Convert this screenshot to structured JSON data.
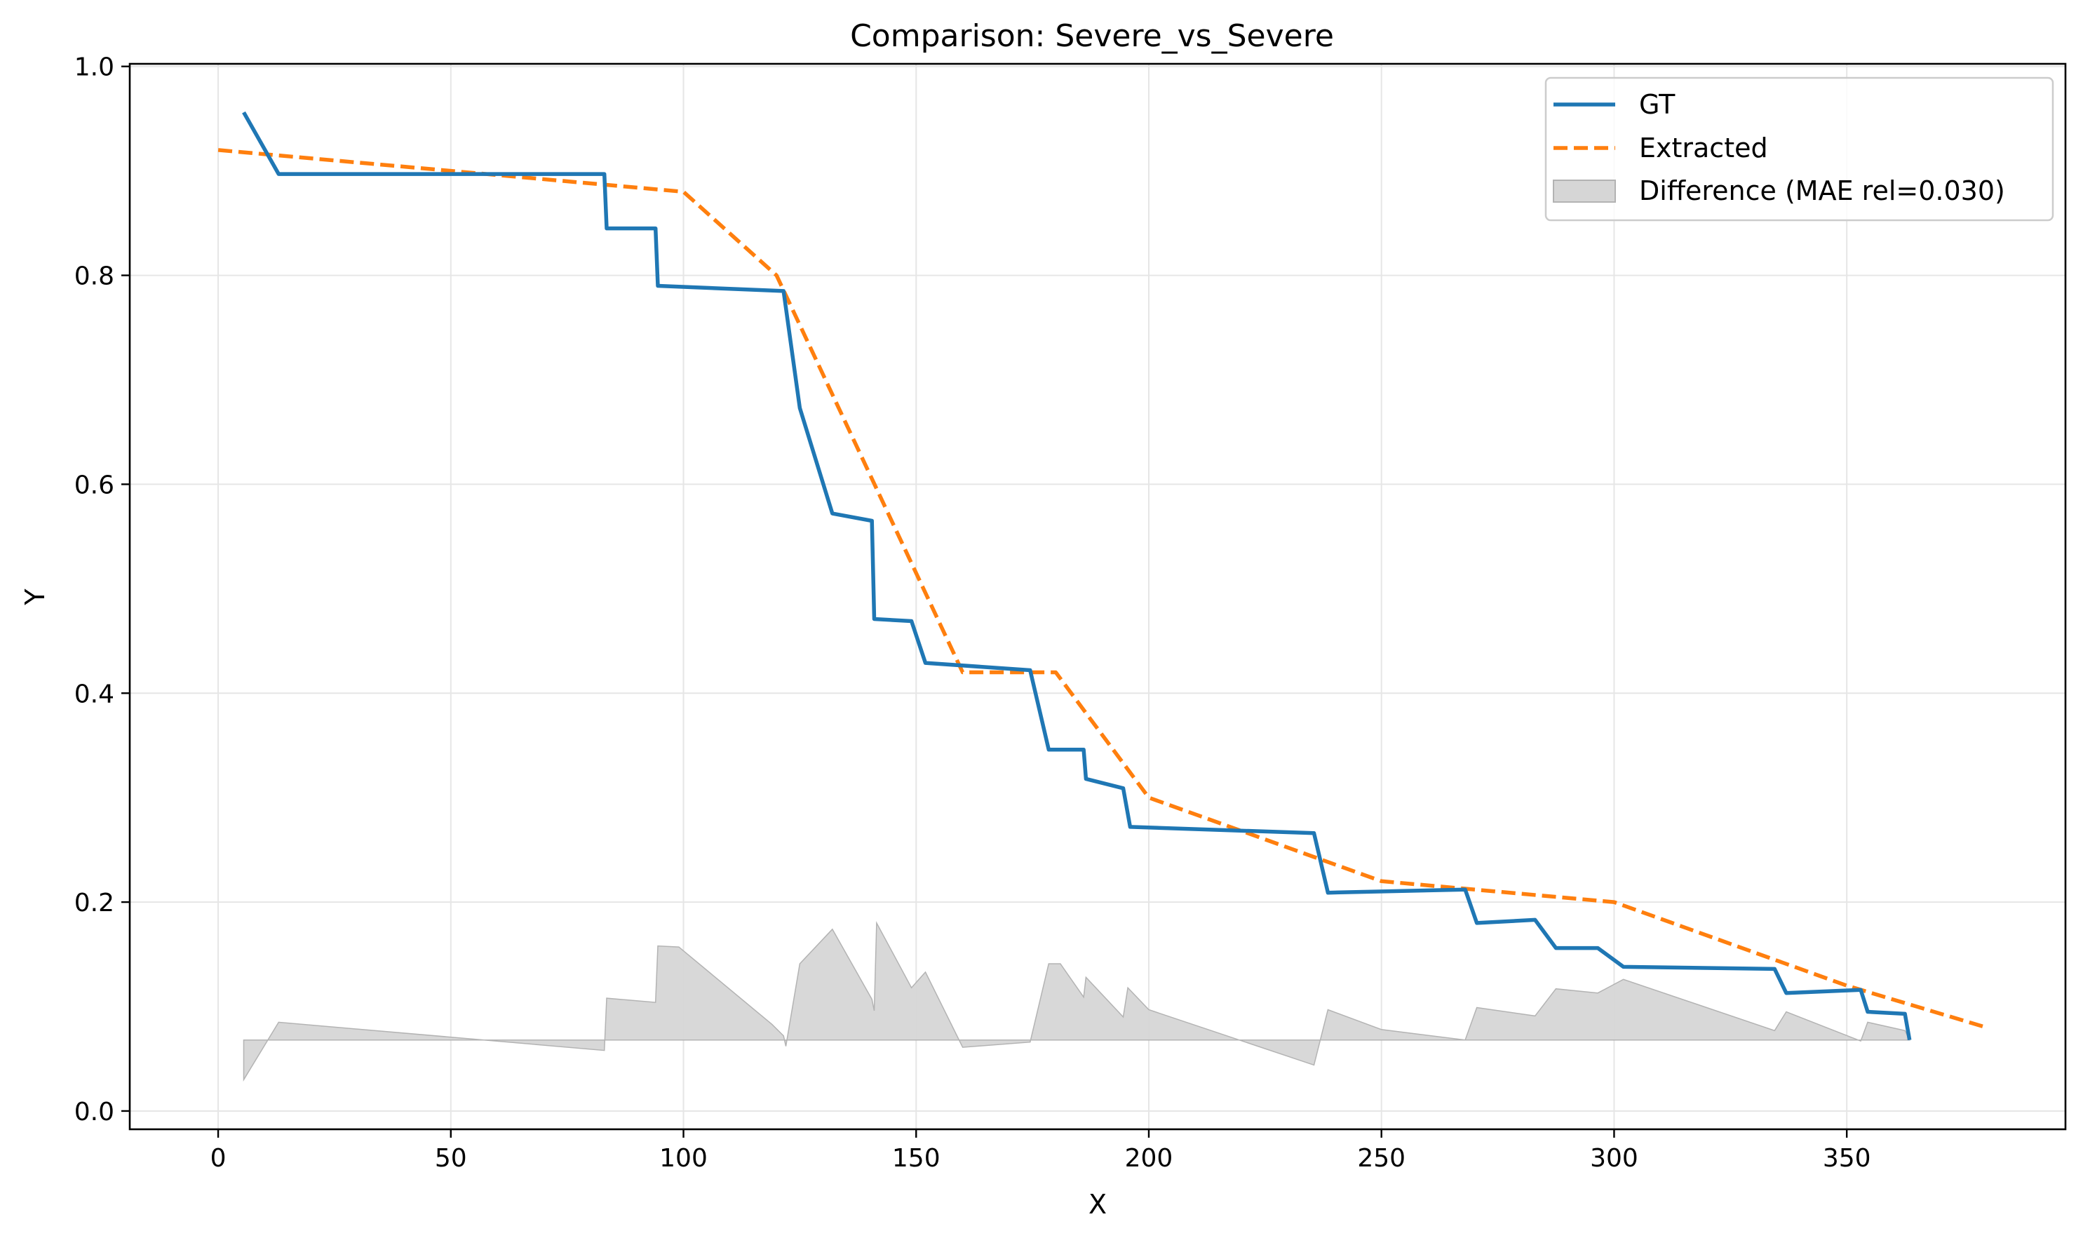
{
  "chart_data": {
    "type": "line",
    "title": "Comparison: Severe_vs_Severe",
    "xlabel": "X",
    "ylabel": "Y",
    "xlim": [
      -19,
      397
    ],
    "ylim": [
      -0.0175,
      1.0025
    ],
    "xticks": [
      0,
      50,
      100,
      150,
      200,
      250,
      300,
      350
    ],
    "xtick_labels": [
      "0",
      "50",
      "100",
      "150",
      "200",
      "250",
      "300",
      "350"
    ],
    "yticks": [
      0.0,
      0.2,
      0.4,
      0.6,
      0.8,
      1.0
    ],
    "ytick_labels": [
      "0.0",
      "0.2",
      "0.4",
      "0.6",
      "0.8",
      "1.0"
    ],
    "grid": true,
    "legend_position": "top-right",
    "colors": {
      "gt": "#1f77b4",
      "extracted": "#ff7f0e",
      "difference": "#d6d6d6",
      "difference_edge": "#b3b3b3",
      "grid": "#e6e6e6"
    },
    "series": [
      {
        "name": "GT",
        "style": "solid",
        "x": [
          5.5,
          13,
          83,
          83.5,
          94,
          94.5,
          121.5,
          125,
          132,
          140.5,
          141,
          149,
          152,
          174.5,
          178.5,
          186,
          186.5,
          194.5,
          196,
          235.5,
          238.5,
          268,
          270.5,
          283,
          287.5,
          296.5,
          302,
          334.5,
          337,
          353,
          354.5,
          362.5,
          363.5
        ],
        "y": [
          0.956,
          0.897,
          0.897,
          0.845,
          0.845,
          0.79,
          0.785,
          0.673,
          0.572,
          0.565,
          0.471,
          0.469,
          0.429,
          0.422,
          0.346,
          0.346,
          0.318,
          0.309,
          0.272,
          0.266,
          0.209,
          0.212,
          0.18,
          0.183,
          0.156,
          0.156,
          0.138,
          0.136,
          0.113,
          0.116,
          0.095,
          0.093,
          0.068
        ]
      },
      {
        "name": "Extracted",
        "style": "dashed",
        "x": [
          0,
          50,
          100,
          120,
          160,
          180,
          200,
          250,
          300,
          350,
          380
        ],
        "y": [
          0.92,
          0.9,
          0.88,
          0.8,
          0.42,
          0.42,
          0.3,
          0.22,
          0.2,
          0.12,
          0.08
        ]
      }
    ],
    "difference": {
      "name": "Difference (MAE rel=0.030)",
      "baseline": 0.068,
      "x": [
        5.5,
        13,
        83,
        83.5,
        94,
        94.5,
        99,
        119,
        121.5,
        122,
        125,
        132,
        140.5,
        141,
        141.5,
        149,
        152,
        160,
        174.5,
        178.5,
        181,
        186,
        186.5,
        194.5,
        195.5,
        200,
        235.5,
        238.5,
        250,
        268,
        270.5,
        283,
        287.5,
        296.5,
        302,
        334.5,
        337,
        353,
        354.5,
        362.5,
        363.5
      ],
      "y": [
        0.03,
        0.085,
        0.058,
        0.108,
        0.104,
        0.158,
        0.157,
        0.083,
        0.072,
        0.062,
        0.141,
        0.174,
        0.107,
        0.096,
        0.18,
        0.118,
        0.133,
        0.061,
        0.066,
        0.141,
        0.141,
        0.109,
        0.128,
        0.09,
        0.118,
        0.097,
        0.044,
        0.097,
        0.078,
        0.068,
        0.099,
        0.091,
        0.117,
        0.113,
        0.126,
        0.077,
        0.095,
        0.067,
        0.085,
        0.077,
        0.068
      ]
    }
  }
}
